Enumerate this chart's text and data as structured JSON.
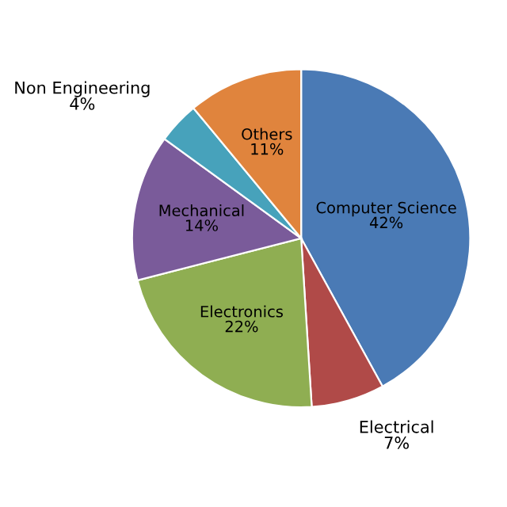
{
  "chart_data": {
    "type": "pie",
    "categories": [
      "Computer Science",
      "Electrical",
      "Electronics",
      "Mechanical",
      "Non Engineering",
      "Others"
    ],
    "values": [
      42,
      7,
      22,
      14,
      4,
      11
    ],
    "colors": [
      "#4a7ab5",
      "#b04a48",
      "#8fae52",
      "#7a5b9a",
      "#47a2bb",
      "#e0843d"
    ],
    "value_labels": [
      "42%",
      "7%",
      "22%",
      "14%",
      "4%",
      "11%"
    ],
    "legend": false
  }
}
